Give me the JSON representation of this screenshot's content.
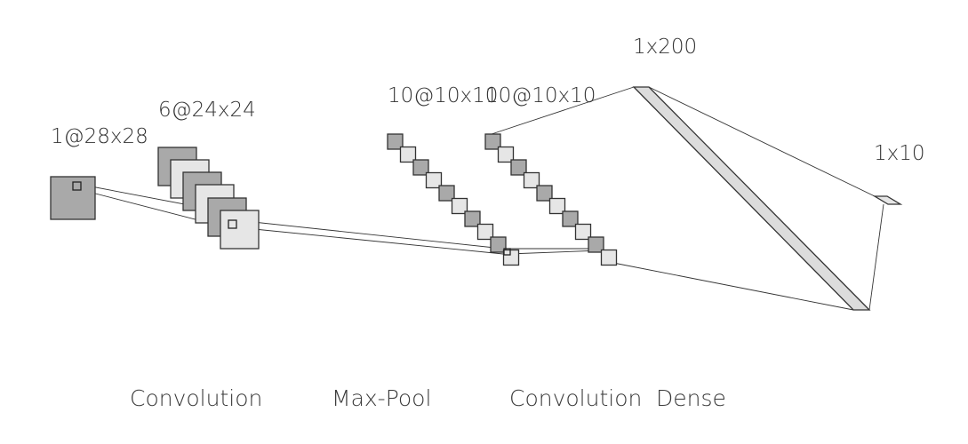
{
  "colors": {
    "map_dark": "#a9a9a9",
    "map_light": "#e6e6e6",
    "dense": "#dcdcdc",
    "stroke": "#333333",
    "text": "#333333"
  },
  "layers": {
    "input": {
      "dim_label": "1@28x28"
    },
    "conv1": {
      "dim_label": "6@24x24"
    },
    "pool": {
      "dim_label": "10@10x10"
    },
    "conv2": {
      "dim_label": "10@10x10"
    },
    "dense1": {
      "dim_label": "1x200"
    },
    "output": {
      "dim_label": "1x10"
    }
  },
  "operations": {
    "conv1": "Convolution",
    "pool": "Max-Pool",
    "conv2": "Convolution",
    "dense": "Dense"
  }
}
